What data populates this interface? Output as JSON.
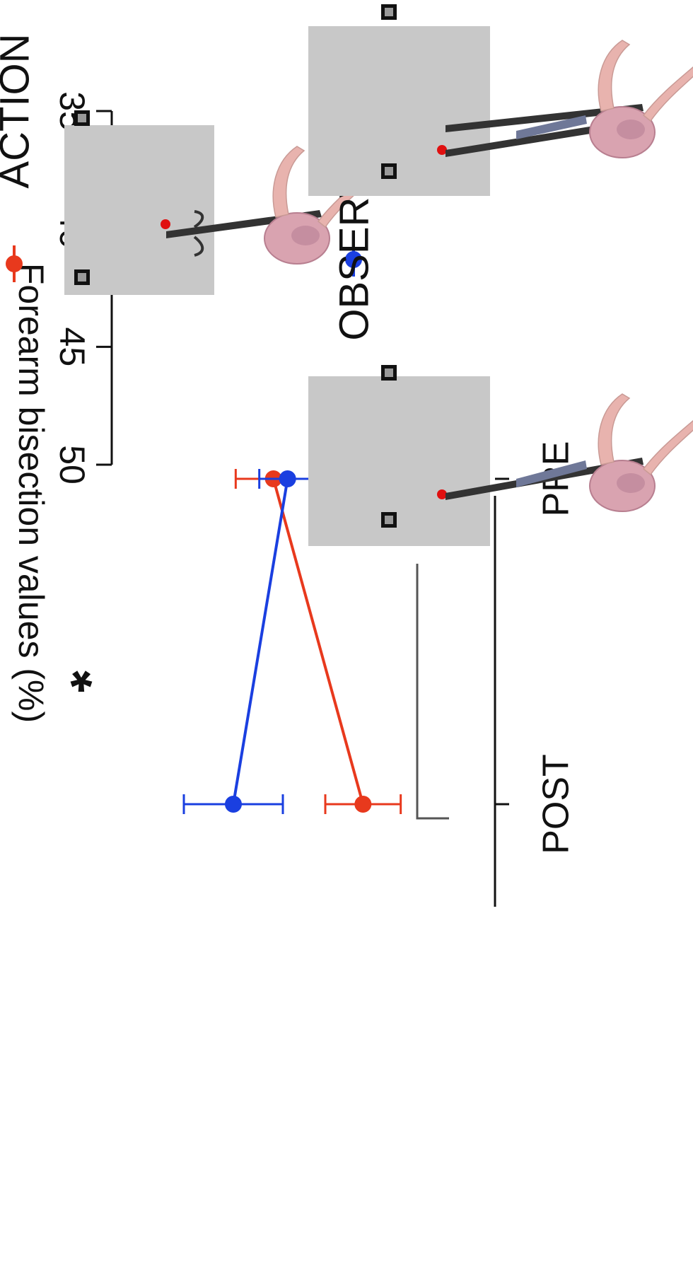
{
  "chart_data": {
    "type": "line",
    "orientation": "rotated-90-clockwise",
    "ylabel": "Forearm bisection values (%)",
    "ylim": [
      35,
      50
    ],
    "yticks": [
      "50",
      "45",
      "40",
      "35"
    ],
    "categories": [
      "PRE",
      "POST"
    ],
    "series": [
      {
        "name": "ACTION",
        "color": "#e8391d",
        "values": [
          41.8,
          45.6
        ],
        "err": [
          1.6,
          1.6
        ]
      },
      {
        "name": "OBSERVATION",
        "color": "#1a3fe0",
        "values": [
          42.4,
          40.1
        ],
        "err": [
          1.2,
          2.1
        ]
      }
    ],
    "significance": {
      "label": "*",
      "between": [
        "PRE",
        "POST"
      ]
    },
    "legend_position": "right",
    "grid": false
  },
  "illustrations": {
    "action": {
      "name": "ACTION",
      "fixation_color": "#e01010",
      "board_color": "#c8c8c8"
    },
    "observation": {
      "name": "OBSERVATION",
      "fixation_color": "#e01010",
      "board_color": "#c8c8c8"
    }
  }
}
